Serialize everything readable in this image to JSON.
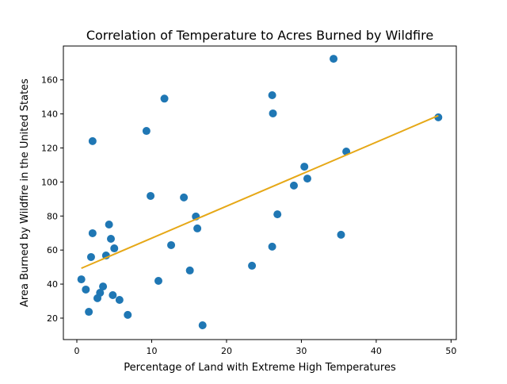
{
  "chart_data": {
    "type": "scatter",
    "title": "Correlation of Temperature to Acres Burned by Wildfire",
    "xlabel": "Percentage of Land with Extreme High Temperatures",
    "ylabel": "Area Burned by Wildfire in the United States",
    "xlim": [
      -1.8,
      50.7
    ],
    "ylim": [
      7.4,
      179.9
    ],
    "xticks": [
      0,
      10,
      20,
      30,
      40,
      50
    ],
    "yticks": [
      20,
      40,
      60,
      80,
      100,
      120,
      140,
      160
    ],
    "grid": false,
    "colors": {
      "points": "#1f77b4",
      "trendline": "#e6a817"
    },
    "points": [
      [
        34.3,
        172.4
      ],
      [
        11.7,
        149
      ],
      [
        26.1,
        151
      ],
      [
        26.2,
        140.3
      ],
      [
        2.1,
        124
      ],
      [
        9.3,
        130
      ],
      [
        48.3,
        138
      ],
      [
        36.0,
        117.9
      ],
      [
        30.4,
        109
      ],
      [
        30.8,
        102
      ],
      [
        29.0,
        97.9
      ],
      [
        9.85,
        91.8
      ],
      [
        14.3,
        90.9
      ],
      [
        26.8,
        81
      ],
      [
        15.9,
        79.7
      ],
      [
        16.1,
        72.7
      ],
      [
        4.3,
        75
      ],
      [
        2.1,
        69.9
      ],
      [
        35.3,
        69
      ],
      [
        4.55,
        66.6
      ],
      [
        5.0,
        61
      ],
      [
        12.6,
        62.9
      ],
      [
        26.1,
        62
      ],
      [
        3.9,
        56.8
      ],
      [
        1.9,
        55.9
      ],
      [
        23.4,
        50.8
      ],
      [
        15.1,
        48
      ],
      [
        10.9,
        41.9
      ],
      [
        0.6,
        42.8
      ],
      [
        3.5,
        38.6
      ],
      [
        1.2,
        36.8
      ],
      [
        3.1,
        34.9
      ],
      [
        4.8,
        33.5
      ],
      [
        2.75,
        31.7
      ],
      [
        5.7,
        30.7
      ],
      [
        1.6,
        23.7
      ],
      [
        6.8,
        21.9
      ],
      [
        16.8,
        15.8
      ]
    ],
    "trendline": {
      "x": [
        0.6,
        48.3
      ],
      "y": [
        49.3,
        139
      ]
    }
  }
}
